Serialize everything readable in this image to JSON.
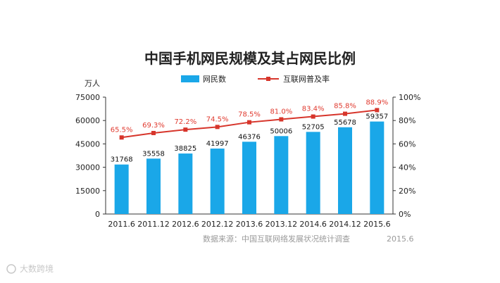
{
  "chart_data": {
    "type": "bar",
    "title": "中国手机网民规模及其占网民比例",
    "categories": [
      "2011.6",
      "2011.12",
      "2012.6",
      "2012.12",
      "2013.6",
      "2013.12",
      "2014.6",
      "2014.12",
      "2015.6"
    ],
    "series": [
      {
        "name": "网民数",
        "type": "bar",
        "axis": "left",
        "values": [
          31768,
          35558,
          38825,
          41997,
          46376,
          50006,
          52705,
          55678,
          59357
        ],
        "labels": [
          "31768",
          "35558",
          "38825",
          "41997",
          "46376",
          "50006",
          "52705",
          "55678",
          "59357"
        ]
      },
      {
        "name": "互联网普及率",
        "type": "line",
        "axis": "right",
        "values": [
          65.5,
          69.3,
          72.2,
          74.5,
          78.5,
          81.0,
          83.4,
          85.8,
          88.9
        ],
        "labels": [
          "65.5%",
          "69.3%",
          "72.2%",
          "74.5%",
          "78.5%",
          "81.0%",
          "83.4%",
          "85.8%",
          "88.9%"
        ]
      }
    ],
    "ylabel": "万人",
    "ylim": [
      0,
      75000
    ],
    "yticks": [
      "0",
      "15000",
      "30000",
      "45000",
      "60000",
      "75000"
    ],
    "y2lim": [
      0,
      100
    ],
    "y2ticks": [
      "0%",
      "20%",
      "40%",
      "60%",
      "80%",
      "100%"
    ],
    "legend": "top-center",
    "grid": false,
    "source": "数据来源：中国互联网络发展状况统计调查",
    "source_date": "2015.6",
    "colors": {
      "bar": "#1aa7e8",
      "line": "#d7352b",
      "axis": "#333333"
    }
  },
  "watermark": "大数跨境"
}
